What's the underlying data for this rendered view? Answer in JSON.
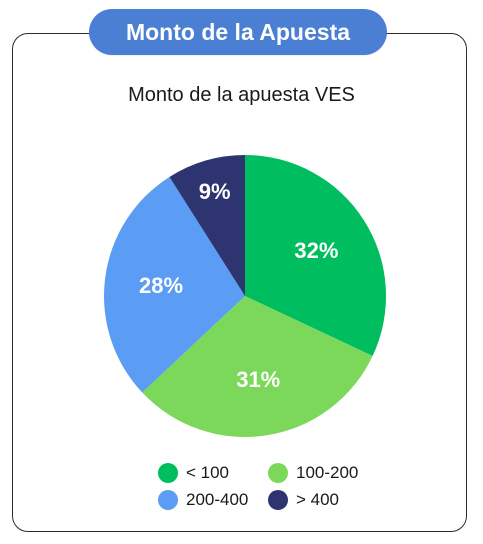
{
  "header": {
    "title": "Monto de la Apuesta"
  },
  "chart_data": {
    "type": "pie",
    "title": "Monto de la apuesta VES",
    "labels": [
      "< 100",
      "100-200",
      "200-400",
      "> 400"
    ],
    "values": [
      32,
      31,
      28,
      9
    ],
    "value_labels": [
      "32%",
      "31%",
      "28%",
      "9%"
    ],
    "colors": [
      "#00be5f",
      "#7cd85a",
      "#5b9cf5",
      "#2d3470"
    ],
    "legend_placement": "bottom",
    "start_angle": "12 o'clock",
    "direction": "clockwise"
  }
}
